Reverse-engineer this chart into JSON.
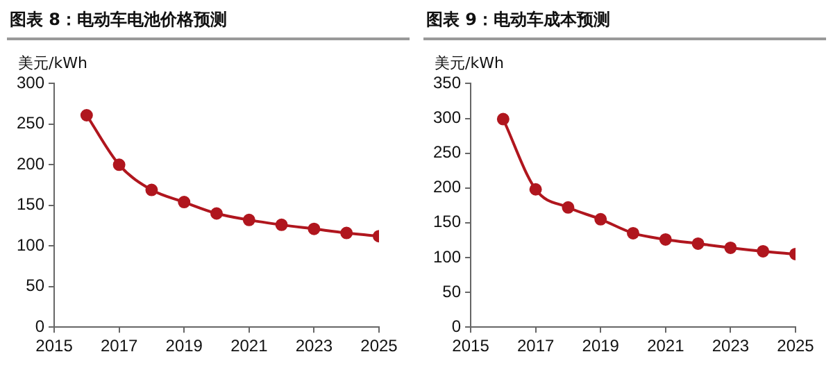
{
  "chart_data": [
    {
      "type": "line",
      "title": "图表 8：电动车电池价格预测",
      "ylabel": "美元/kWh",
      "x": [
        2016,
        2017,
        2018,
        2019,
        2020,
        2021,
        2022,
        2023,
        2024,
        2025
      ],
      "series": [
        {
          "color": "#b0161e",
          "values": [
            261,
            200,
            169,
            154,
            140,
            132,
            126,
            121,
            116,
            112
          ]
        }
      ],
      "xlim": [
        2015,
        2025
      ],
      "xticks": [
        2015,
        2017,
        2019,
        2021,
        2023,
        2025
      ],
      "ylim": [
        0,
        300
      ],
      "yticks": [
        0,
        50,
        100,
        150,
        200,
        250,
        300
      ],
      "grid": false,
      "legend": false,
      "marker": "circle",
      "line_style": "solid"
    },
    {
      "type": "line",
      "title": "图表 9：电动车成本预测",
      "ylabel": "美元/kWh",
      "x": [
        2016,
        2017,
        2018,
        2019,
        2020,
        2021,
        2022,
        2023,
        2024,
        2025
      ],
      "series": [
        {
          "color": "#b0161e",
          "values": [
            299,
            198,
            172,
            155,
            135,
            126,
            120,
            114,
            109,
            105
          ]
        }
      ],
      "xlim": [
        2015,
        2025
      ],
      "xticks": [
        2015,
        2017,
        2019,
        2021,
        2023,
        2025
      ],
      "ylim": [
        0,
        350
      ],
      "yticks": [
        0,
        50,
        100,
        150,
        200,
        250,
        300,
        350
      ],
      "grid": false,
      "legend": false,
      "marker": "circle",
      "line_style": "solid"
    }
  ]
}
